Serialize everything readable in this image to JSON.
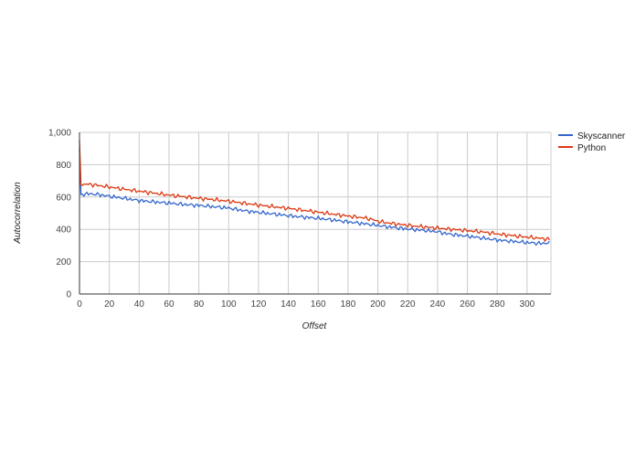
{
  "chart_data": {
    "type": "line",
    "xlabel": "Offset",
    "ylabel": "Autocorrelation",
    "xlim": [
      0,
      316
    ],
    "ylim": [
      0,
      1000
    ],
    "x_ticks": [
      0,
      20,
      40,
      60,
      80,
      100,
      120,
      140,
      160,
      180,
      200,
      220,
      240,
      260,
      280,
      300
    ],
    "y_ticks": [
      0,
      200,
      400,
      600,
      800,
      1000
    ],
    "x_tick_labels": [
      "0",
      "20",
      "40",
      "60",
      "80",
      "100",
      "120",
      "140",
      "160",
      "180",
      "200",
      "220",
      "240",
      "260",
      "280",
      "300"
    ],
    "y_tick_labels": [
      "0",
      "200",
      "400",
      "600",
      "800",
      "1,000"
    ],
    "grid": true,
    "legend_position": "right",
    "series": [
      {
        "name": "Skyscanner",
        "color": "#3366cc",
        "x": [
          0,
          1,
          5,
          10,
          15,
          20,
          25,
          30,
          35,
          40,
          45,
          50,
          55,
          60,
          65,
          70,
          75,
          80,
          85,
          90,
          95,
          100,
          105,
          110,
          115,
          120,
          125,
          130,
          135,
          140,
          145,
          150,
          155,
          160,
          165,
          170,
          175,
          180,
          185,
          190,
          195,
          200,
          205,
          210,
          215,
          220,
          225,
          230,
          235,
          240,
          245,
          250,
          255,
          260,
          265,
          270,
          275,
          280,
          285,
          290,
          295,
          300,
          305,
          310,
          315
        ],
        "values": [
          900,
          615,
          620,
          618,
          612,
          605,
          598,
          592,
          585,
          578,
          574,
          570,
          566,
          562,
          558,
          554,
          551,
          548,
          544,
          540,
          536,
          532,
          524,
          516,
          510,
          505,
          500,
          495,
          490,
          485,
          480,
          476,
          472,
          468,
          463,
          458,
          452,
          446,
          441,
          436,
          430,
          424,
          418,
          412,
          407,
          402,
          398,
          394,
          390,
          385,
          375,
          368,
          363,
          358,
          352,
          346,
          340,
          334,
          330,
          326,
          322,
          318,
          315,
          312,
          318
        ]
      },
      {
        "name": "Python",
        "color": "#dc3912",
        "x": [
          0,
          1,
          5,
          10,
          15,
          20,
          25,
          30,
          35,
          40,
          45,
          50,
          55,
          60,
          65,
          70,
          75,
          80,
          85,
          90,
          95,
          100,
          105,
          110,
          115,
          120,
          125,
          130,
          135,
          140,
          145,
          150,
          155,
          160,
          165,
          170,
          175,
          180,
          185,
          190,
          195,
          200,
          205,
          210,
          215,
          220,
          225,
          230,
          235,
          240,
          245,
          250,
          255,
          260,
          265,
          270,
          275,
          280,
          285,
          290,
          295,
          300,
          305,
          310,
          315
        ],
        "values": [
          950,
          675,
          680,
          675,
          668,
          662,
          655,
          648,
          642,
          636,
          630,
          624,
          618,
          612,
          607,
          602,
          597,
          592,
          588,
          584,
          579,
          574,
          568,
          562,
          556,
          550,
          545,
          540,
          535,
          530,
          524,
          518,
          512,
          506,
          500,
          494,
          488,
          482,
          477,
          472,
          464,
          450,
          442,
          436,
          430,
          425,
          420,
          416,
          412,
          408,
          404,
          400,
          396,
          392,
          388,
          384,
          378,
          372,
          366,
          362,
          356,
          352,
          348,
          343,
          338
        ]
      }
    ]
  }
}
